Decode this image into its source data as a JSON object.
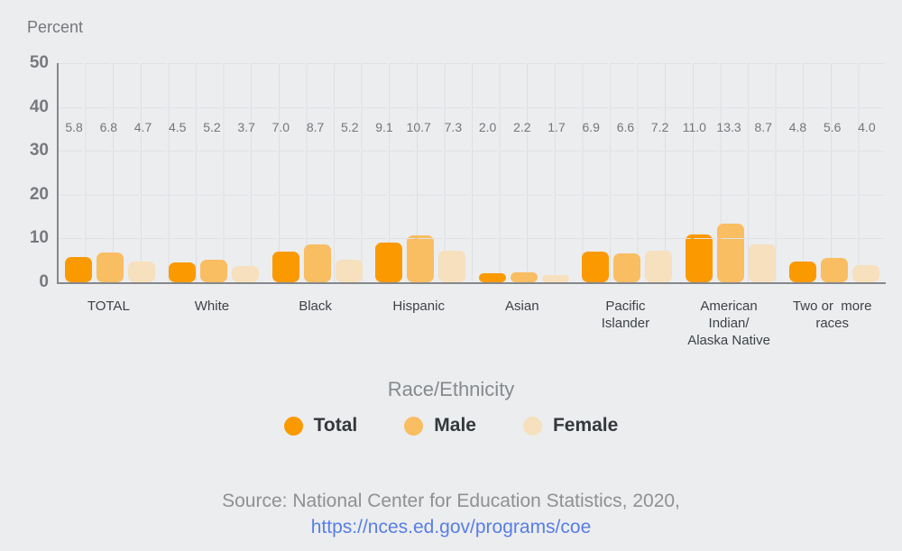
{
  "colors": {
    "background": "#ECEDEF",
    "axis": "#85888C",
    "gridline": "#DFE1E4",
    "tick_text": "#77797D",
    "value_label_text": "#74767A",
    "category_text": "#3E4246",
    "legend_title_text": "#868A8D",
    "legend_label_text": "#34383C",
    "source_text": "#8E9092",
    "link_text": "#587EE4"
  },
  "chart_data": {
    "type": "bar",
    "title": "",
    "ylabel": "Percent",
    "xlabel": "Race/Ethnicity",
    "ylim": [
      0,
      50
    ],
    "yticks": [
      0,
      10,
      20,
      30,
      40,
      50
    ],
    "grid": "horizontal-dashed",
    "legend_position": "bottom",
    "value_labels_shown": true,
    "categories": [
      "TOTAL",
      "White",
      "Black",
      "Hispanic",
      "Asian",
      "Pacific\nIslander",
      "American\nIndian/\nAlaska Native",
      "Two or  more\nraces"
    ],
    "series": [
      {
        "name": "Total",
        "color": "#FB9900",
        "values": [
          5.8,
          4.5,
          7.0,
          9.1,
          2.0,
          6.9,
          11.0,
          4.8
        ]
      },
      {
        "name": "Male",
        "color": "#F9BD62",
        "values": [
          6.8,
          5.2,
          8.7,
          10.7,
          2.2,
          6.6,
          13.3,
          5.6
        ]
      },
      {
        "name": "Female",
        "color": "#F6E0BD",
        "values": [
          4.7,
          3.7,
          5.2,
          7.3,
          1.7,
          7.2,
          8.7,
          4.0
        ]
      }
    ]
  },
  "footer": {
    "source_text": "Source: National Center for Education Statistics, 2020,",
    "link_text": "https://nces.ed.gov/programs/coe"
  }
}
